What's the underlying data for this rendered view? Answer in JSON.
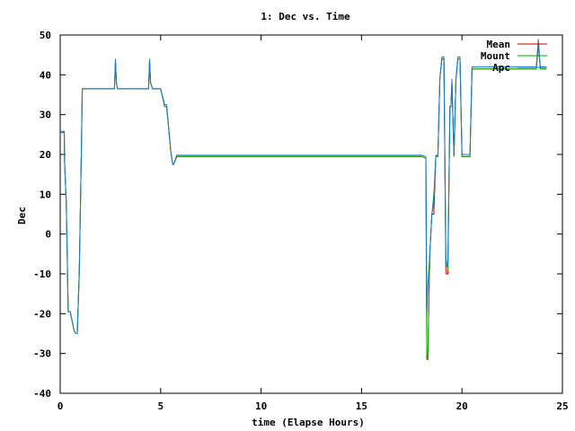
{
  "chart_data": {
    "type": "line",
    "title": "1: Dec vs. Time",
    "xlabel": "time (Elapse Hours)",
    "ylabel": "Dec",
    "xlim": [
      0,
      25
    ],
    "ylim": [
      -40,
      50
    ],
    "xticks": [
      0,
      5,
      10,
      15,
      20,
      25
    ],
    "yticks": [
      -40,
      -30,
      -20,
      -10,
      0,
      10,
      20,
      30,
      40,
      50
    ],
    "grid": false,
    "legend_position": "top-right",
    "series": [
      {
        "name": "Mean",
        "color": "#cc0000",
        "x": [
          0,
          0.2,
          0.22,
          0.3,
          0.35,
          0.4,
          0.5,
          0.6,
          0.7,
          0.8,
          0.85,
          0.95,
          1.05,
          1.1,
          2.7,
          2.75,
          2.8,
          2.85,
          4.4,
          4.45,
          4.5,
          4.6,
          5.0,
          5.2,
          5.3,
          5.5,
          5.6,
          5.65,
          5.8,
          6.0,
          17.8,
          18.0,
          18.2,
          18.25,
          18.3,
          18.4,
          18.5,
          18.6,
          18.7,
          18.8,
          18.9,
          19.0,
          19.1,
          19.2,
          19.3,
          19.4,
          19.45,
          19.5,
          19.6,
          19.7,
          19.8,
          19.9,
          20.0,
          20.1,
          20.2,
          20.3,
          20.4,
          20.5,
          20.6,
          21.2,
          21.3,
          21.5,
          21.7,
          23.7,
          23.8,
          23.9,
          24.0,
          24.2
        ],
        "values": [
          25.5,
          25.5,
          18,
          8,
          -5,
          -19.5,
          -19.5,
          -22,
          -24.5,
          -25,
          -25,
          -10,
          20,
          36.5,
          36.5,
          43.5,
          38,
          36.5,
          36.5,
          43.5,
          38,
          36.5,
          36.5,
          32,
          32,
          21,
          17.5,
          17.5,
          19.5,
          19.5,
          19.5,
          19.5,
          19,
          -31.5,
          -31.5,
          -5,
          5,
          5,
          19.5,
          19.5,
          39,
          44,
          44,
          -10,
          -10,
          32,
          32,
          38,
          19.5,
          39,
          44,
          44,
          19.5,
          19.5,
          19.5,
          19.5,
          19.5,
          41.5,
          41.5,
          41.5,
          41.5,
          41.5,
          41.5,
          41.5,
          47.5,
          41.5,
          41.5,
          41.5
        ]
      },
      {
        "name": "Mount",
        "color": "#00aa00",
        "x": [
          0,
          0.2,
          0.22,
          0.3,
          0.35,
          0.4,
          0.5,
          0.6,
          0.7,
          0.8,
          0.85,
          0.95,
          1.05,
          1.1,
          2.7,
          2.75,
          2.8,
          2.85,
          4.4,
          4.45,
          4.5,
          4.6,
          5.0,
          5.2,
          5.3,
          5.5,
          5.6,
          5.65,
          5.8,
          6.0,
          17.8,
          18.0,
          18.2,
          18.25,
          18.3,
          18.4,
          18.5,
          18.6,
          18.7,
          18.8,
          18.9,
          19.0,
          19.1,
          19.2,
          19.3,
          19.4,
          19.45,
          19.5,
          19.6,
          19.7,
          19.8,
          19.9,
          20.0,
          20.1,
          20.2,
          20.3,
          20.4,
          20.5,
          20.6,
          21.2,
          21.3,
          21.5,
          21.7,
          23.7,
          23.8,
          23.9,
          24.0,
          24.2
        ],
        "values": [
          25.5,
          25.5,
          18,
          8,
          -5,
          -19.5,
          -19.5,
          -22,
          -24.5,
          -25,
          -25,
          -10,
          20,
          36.5,
          36.5,
          43.5,
          38,
          36.5,
          36.5,
          43.5,
          38,
          36.5,
          36.5,
          32,
          32,
          21,
          17.5,
          17.5,
          19.5,
          19.5,
          19.5,
          19.5,
          19,
          -31,
          -31,
          -5,
          5,
          10,
          19.5,
          19.5,
          39,
          44,
          44,
          -6,
          -9,
          32,
          32,
          38,
          19.5,
          39,
          44,
          44,
          19.5,
          19.5,
          19.5,
          19.5,
          19.5,
          41.5,
          41.5,
          41.5,
          41.5,
          41.5,
          41.5,
          41.5,
          48,
          41.5,
          41.5,
          41.5
        ]
      },
      {
        "name": "Apc",
        "color": "#1f77c8",
        "x": [
          0,
          0.2,
          0.22,
          0.3,
          0.35,
          0.4,
          0.5,
          0.6,
          0.7,
          0.8,
          0.85,
          0.95,
          1.05,
          1.1,
          2.7,
          2.75,
          2.8,
          2.85,
          4.4,
          4.45,
          4.5,
          4.6,
          5.0,
          5.2,
          5.3,
          5.5,
          5.6,
          5.65,
          5.8,
          6.0,
          17.8,
          18.0,
          18.2,
          18.25,
          18.3,
          18.4,
          18.5,
          18.6,
          18.7,
          18.8,
          18.9,
          19.0,
          19.1,
          19.2,
          19.3,
          19.4,
          19.45,
          19.5,
          19.6,
          19.7,
          19.8,
          19.9,
          20.0,
          20.1,
          20.2,
          20.3,
          20.4,
          20.5,
          20.6,
          21.2,
          21.3,
          21.5,
          21.7,
          23.7,
          23.8,
          23.9,
          24.0,
          24.2
        ],
        "values": [
          25.8,
          25.8,
          18,
          8,
          -5,
          -19.5,
          -19.5,
          -22,
          -24.5,
          -25,
          -25,
          -10,
          20,
          36.5,
          36.5,
          44,
          38,
          36.5,
          36.5,
          44,
          38,
          36.5,
          36.5,
          32.5,
          32.5,
          21,
          17.5,
          17.5,
          19.8,
          19.8,
          19.8,
          19.8,
          19.5,
          -20,
          -13,
          -5,
          5,
          8,
          19.8,
          19.8,
          39,
          44.5,
          44.5,
          -8,
          -8,
          32,
          32,
          39,
          20,
          39,
          44.5,
          44.5,
          20,
          20,
          20,
          20,
          20,
          42,
          42,
          42,
          42,
          42,
          42,
          42,
          49,
          42,
          42,
          42
        ]
      }
    ]
  }
}
